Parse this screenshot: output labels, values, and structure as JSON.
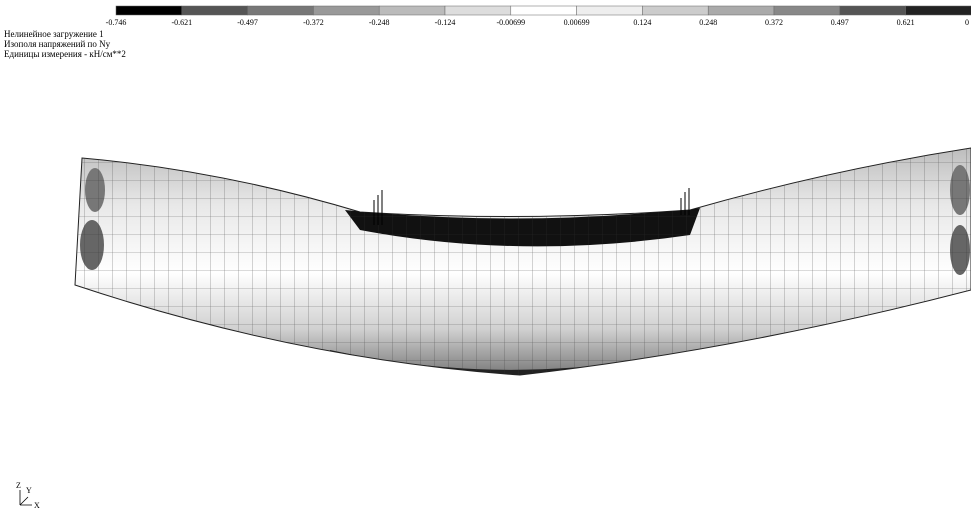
{
  "header": {
    "lines": [
      "Нелинейное загружение  1",
      "Изополя напряжений по Ny",
      "Единицы измерения - кН/см**2"
    ]
  },
  "legend": {
    "labels": [
      "-0.746",
      "-0.621",
      "-0.497",
      "-0.372",
      "-0.248",
      "-0.124",
      "-0.00699",
      "0.00699",
      "0.124",
      "0.248",
      "0.372",
      "0.497",
      "0.621",
      "0"
    ],
    "colors": [
      "#000000",
      "#555555",
      "#777777",
      "#999999",
      "#bbbbbb",
      "#dddddd",
      "#ffffff",
      "#eeeeee",
      "#cccccc",
      "#aaaaaa",
      "#888888",
      "#555555",
      "#222222"
    ]
  },
  "axes_icon": {
    "z": "Z",
    "y": "Y",
    "x": "X"
  }
}
